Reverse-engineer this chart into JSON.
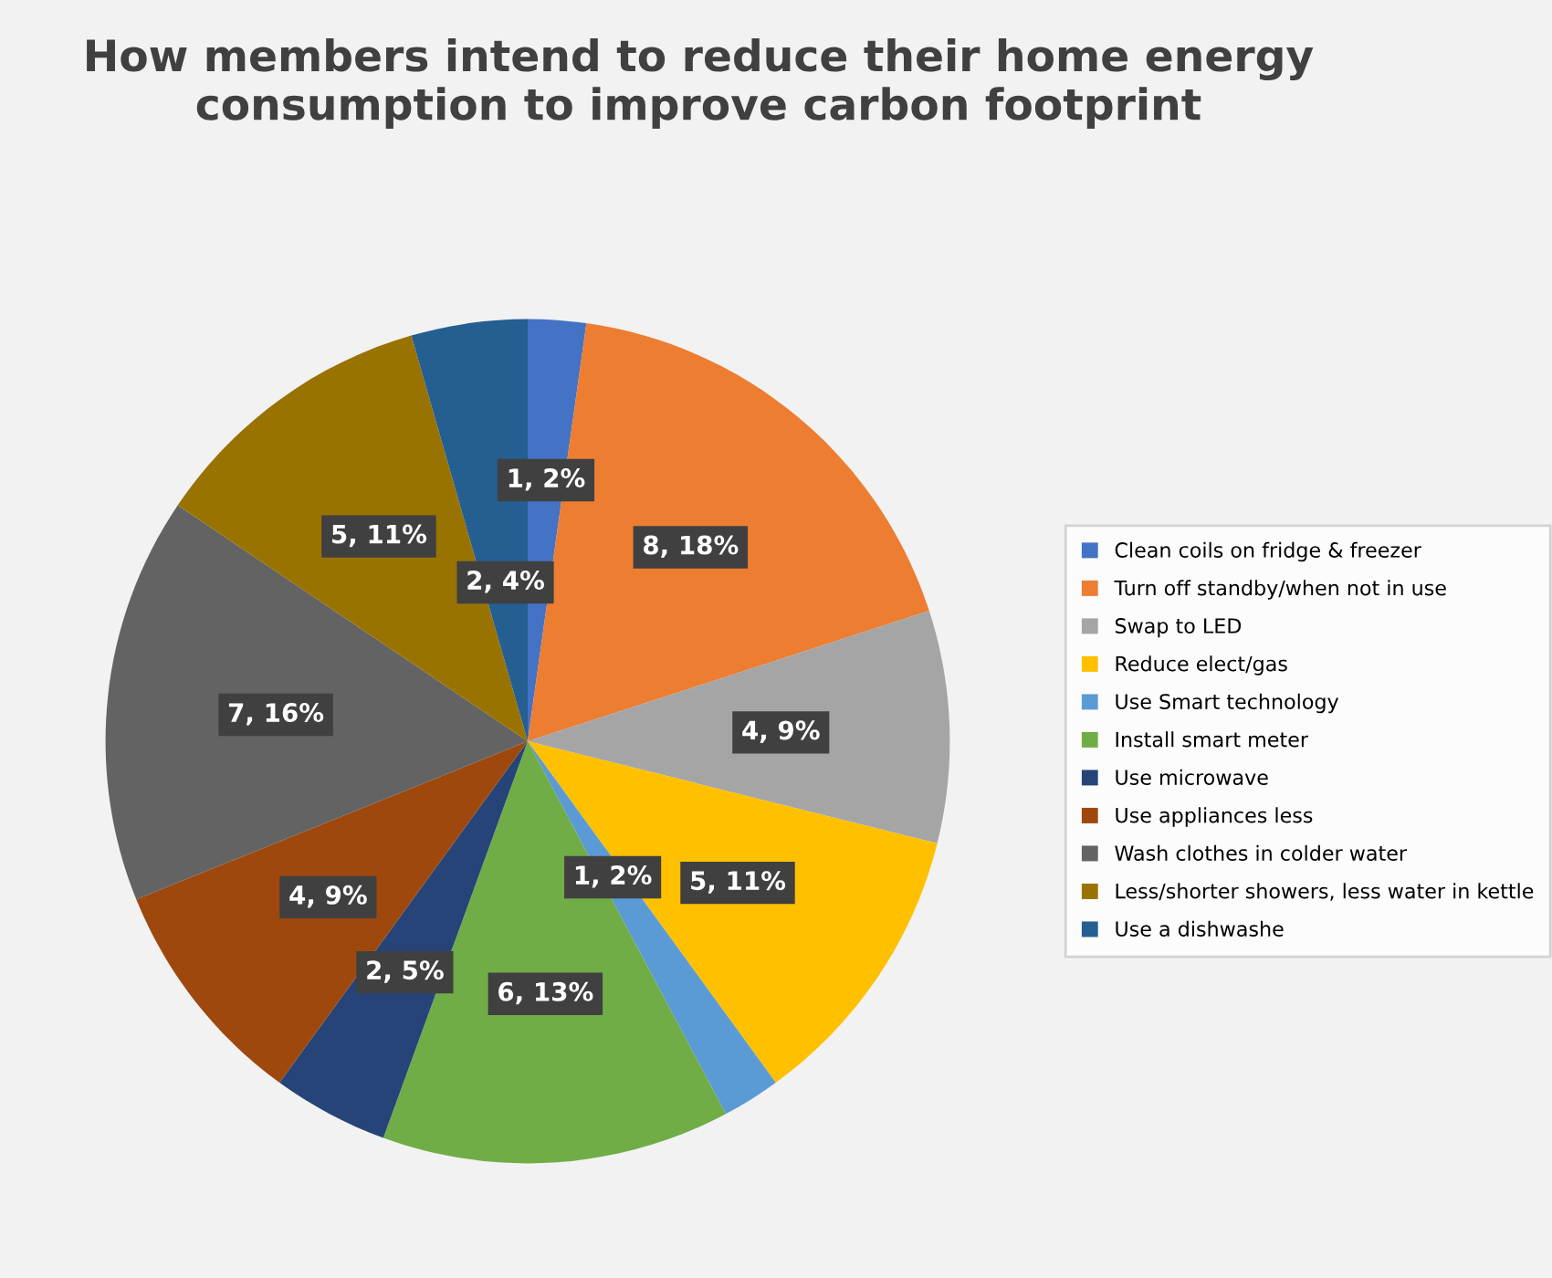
{
  "chart_data": {
    "type": "pie",
    "title": "How members intend to reduce their home energy consumption to improve carbon footprint",
    "categories": [
      "Clean coils on fridge & freezer",
      "Turn off standby/when not in use",
      "Swap to LED",
      "Reduce elect/gas",
      "Use Smart technology",
      "Install smart meter",
      "Use microwave",
      "Use appliances less",
      "Wash clothes in colder water",
      "Less/shorter showers, less water in kettle",
      "Use a dishwashe"
    ],
    "values": [
      1,
      8,
      4,
      5,
      1,
      6,
      2,
      4,
      7,
      5,
      2
    ],
    "value_labels": [
      "1, 2%",
      "8, 18%",
      "4, 9%",
      "5, 11%",
      "1, 2%",
      "6, 13%",
      "2, 5%",
      "4, 9%",
      "7, 16%",
      "5, 11%",
      "2, 4%"
    ],
    "colors": [
      "#4472c4",
      "#ed7d31",
      "#a5a5a5",
      "#ffc000",
      "#5b9bd5",
      "#70ad47",
      "#264478",
      "#9e480e",
      "#636363",
      "#997300",
      "#255e91"
    ],
    "legend": "right"
  }
}
